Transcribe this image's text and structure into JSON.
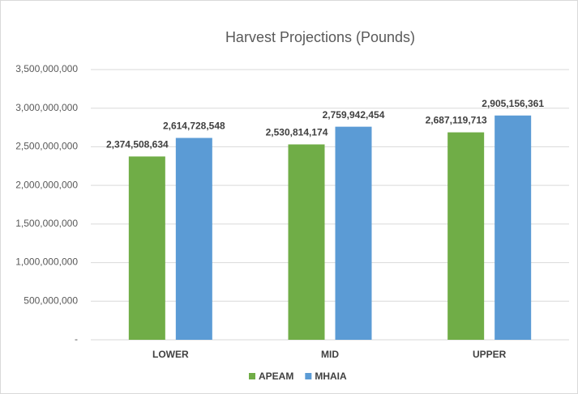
{
  "chart_data": {
    "type": "bar",
    "title": "Harvest Projections (Pounds)",
    "categories": [
      "LOWER",
      "MID",
      "UPPER"
    ],
    "series": [
      {
        "name": "APEAM",
        "color": "#70ad47",
        "values": [
          2374508634,
          2530814174,
          2687119713
        ],
        "value_labels": [
          "2,374,508,634",
          "2,530,814,174",
          "2,687,119,713"
        ]
      },
      {
        "name": "MHAIA",
        "color": "#5b9bd5",
        "values": [
          2614728548,
          2759942454,
          2905156361
        ],
        "value_labels": [
          "2,614,728,548",
          "2,759,942,454",
          "2,905,156,361"
        ]
      }
    ],
    "ylim": [
      0,
      3500000000
    ],
    "yticks": [
      {
        "value": 0,
        "label": "-"
      },
      {
        "value": 500000000,
        "label": "500,000,000"
      },
      {
        "value": 1000000000,
        "label": "1,000,000,000"
      },
      {
        "value": 1500000000,
        "label": "1,500,000,000"
      },
      {
        "value": 2000000000,
        "label": "2,000,000,000"
      },
      {
        "value": 2500000000,
        "label": "2,500,000,000"
      },
      {
        "value": 3000000000,
        "label": "3,000,000,000"
      },
      {
        "value": 3500000000,
        "label": "3,500,000,000"
      }
    ],
    "grid": true,
    "legend": "bottom"
  }
}
